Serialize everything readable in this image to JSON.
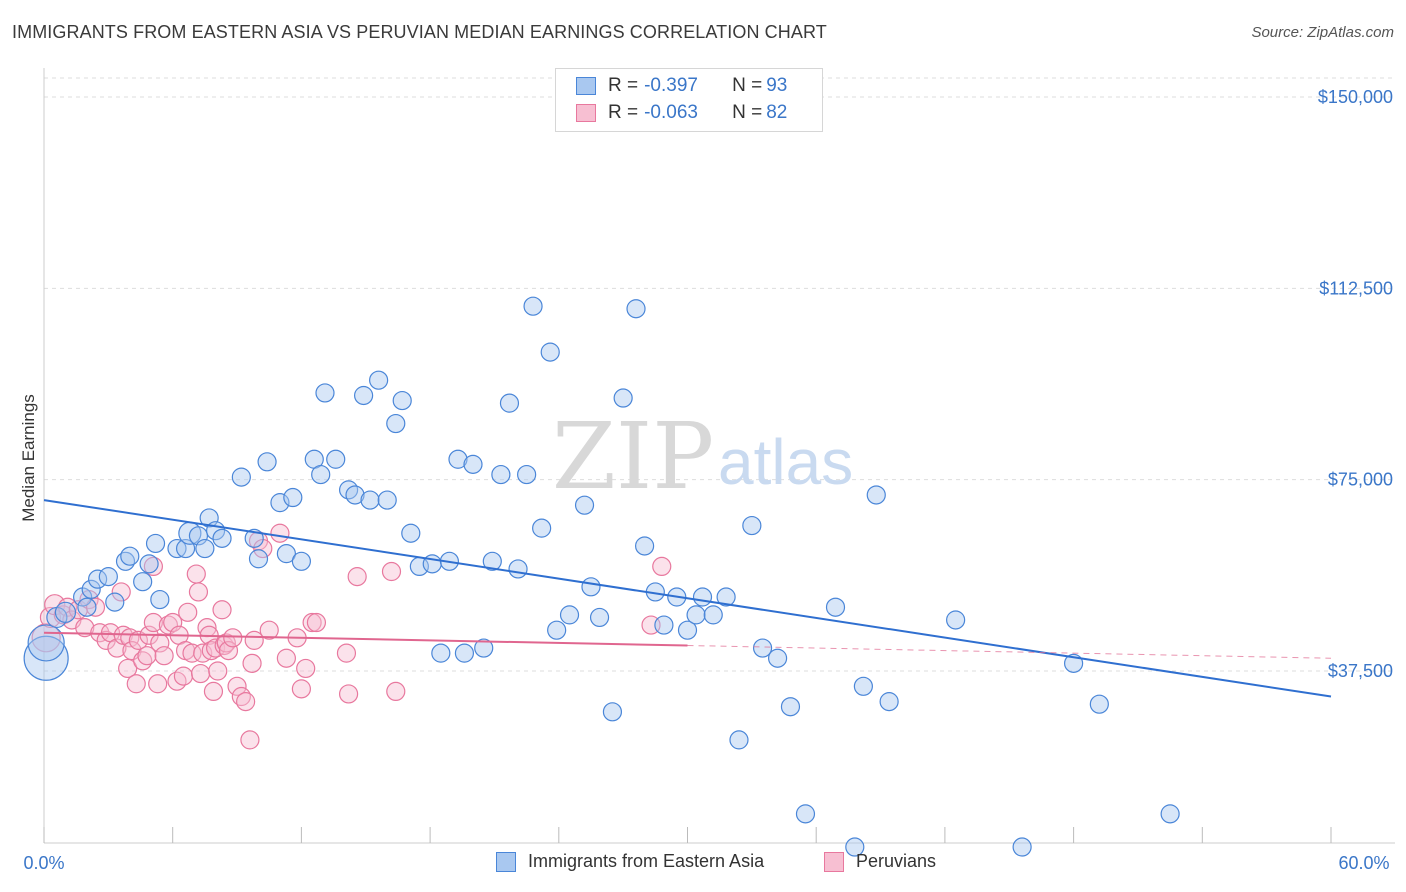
{
  "title": "IMMIGRANTS FROM EASTERN ASIA VS PERUVIAN MEDIAN EARNINGS CORRELATION CHART",
  "source": "Source: ZipAtlas.com",
  "watermark": {
    "zip": "ZIP",
    "atlas": "atlas"
  },
  "legend": {
    "rows": [
      {
        "r_label": "R = ",
        "r_value": "-0.397",
        "n_label": "N = ",
        "n_value": "93"
      },
      {
        "r_label": "R = ",
        "r_value": "-0.063",
        "n_label": "N = ",
        "n_value": "82"
      }
    ]
  },
  "colors": {
    "blue_fill": "#a9c8f0",
    "blue_stroke": "#4a86d8",
    "blue_line": "#2f6fd0",
    "pink_fill": "#f7bfd2",
    "pink_stroke": "#e8789e",
    "pink_line": "#e0668f",
    "grid": "#dddddd",
    "label": "#3a76c8"
  },
  "chart_data": {
    "type": "scatter",
    "title": "IMMIGRANTS FROM EASTERN ASIA VS PERUVIAN MEDIAN EARNINGS CORRELATION CHART",
    "xlabel": "",
    "ylabel": "Median Earnings",
    "xlim": [
      0,
      60
    ],
    "ylim": [
      10000,
      155000
    ],
    "x_tick_labels": [
      "0.0%",
      "60.0%"
    ],
    "y_ticks": [
      {
        "value": 37500,
        "label": "$37,500"
      },
      {
        "value": 75000,
        "label": "$75,000"
      },
      {
        "value": 112500,
        "label": "$112,500"
      },
      {
        "value": 150000,
        "label": "$150,000"
      }
    ],
    "series": [
      {
        "name": "Immigrants from Eastern Asia",
        "color": "#4a86d8",
        "trend": {
          "x0": 0,
          "y0": 71000,
          "x1": 60,
          "y1": 32500
        },
        "points": [
          [
            0.1,
            40000,
            22
          ],
          [
            0.1,
            43000,
            18
          ],
          [
            0.6,
            48000,
            10
          ],
          [
            1.0,
            49000,
            10
          ],
          [
            1.8,
            52000,
            9
          ],
          [
            2.0,
            50000,
            9
          ],
          [
            2.2,
            53500,
            9
          ],
          [
            2.5,
            55500,
            9
          ],
          [
            3.0,
            56000,
            9
          ],
          [
            3.3,
            51000,
            9
          ],
          [
            3.8,
            59000,
            9
          ],
          [
            4.0,
            60000,
            9
          ],
          [
            4.6,
            55000,
            9
          ],
          [
            4.9,
            58500,
            9
          ],
          [
            5.2,
            62500,
            9
          ],
          [
            5.4,
            51500,
            9
          ],
          [
            6.2,
            61500,
            9
          ],
          [
            6.6,
            61500,
            9
          ],
          [
            6.8,
            64500,
            11
          ],
          [
            7.2,
            64000,
            9
          ],
          [
            7.5,
            61500,
            9
          ],
          [
            7.7,
            67500,
            9
          ],
          [
            8.0,
            65000,
            9
          ],
          [
            8.3,
            63500,
            9
          ],
          [
            9.2,
            75500,
            9
          ],
          [
            9.8,
            63500,
            9
          ],
          [
            10.0,
            59500,
            9
          ],
          [
            10.4,
            78500,
            9
          ],
          [
            11.0,
            70500,
            9
          ],
          [
            11.3,
            60500,
            9
          ],
          [
            11.6,
            71500,
            9
          ],
          [
            12.0,
            59000,
            9
          ],
          [
            12.6,
            79000,
            9
          ],
          [
            12.9,
            76000,
            9
          ],
          [
            13.1,
            92000,
            9
          ],
          [
            13.6,
            79000,
            9
          ],
          [
            14.2,
            73000,
            9
          ],
          [
            14.5,
            72000,
            9
          ],
          [
            14.9,
            91500,
            9
          ],
          [
            15.2,
            71000,
            9
          ],
          [
            15.6,
            94500,
            9
          ],
          [
            16.0,
            71000,
            9
          ],
          [
            16.4,
            86000,
            9
          ],
          [
            16.7,
            90500,
            9
          ],
          [
            17.1,
            64500,
            9
          ],
          [
            17.5,
            58000,
            9
          ],
          [
            18.1,
            58500,
            9
          ],
          [
            18.5,
            41000,
            9
          ],
          [
            18.9,
            59000,
            9
          ],
          [
            19.3,
            79000,
            9
          ],
          [
            19.6,
            41000,
            9
          ],
          [
            20.0,
            78000,
            9
          ],
          [
            20.5,
            42000,
            9
          ],
          [
            20.9,
            59000,
            9
          ],
          [
            21.3,
            76000,
            9
          ],
          [
            21.7,
            90000,
            9
          ],
          [
            22.1,
            57500,
            9
          ],
          [
            22.5,
            76000,
            9
          ],
          [
            23.2,
            65500,
            9
          ],
          [
            23.6,
            100000,
            9
          ],
          [
            23.9,
            45500,
            9
          ],
          [
            24.5,
            48500,
            9
          ],
          [
            22.8,
            109000,
            9
          ],
          [
            25.2,
            70000,
            9
          ],
          [
            25.5,
            54000,
            9
          ],
          [
            25.9,
            48000,
            9
          ],
          [
            26.5,
            29500,
            9
          ],
          [
            27.0,
            91000,
            9
          ],
          [
            27.6,
            108500,
            9
          ],
          [
            28.0,
            62000,
            9
          ],
          [
            28.5,
            53000,
            9
          ],
          [
            28.9,
            46500,
            9
          ],
          [
            29.5,
            52000,
            9
          ],
          [
            30.0,
            45500,
            9
          ],
          [
            30.4,
            48500,
            9
          ],
          [
            30.7,
            52000,
            9
          ],
          [
            31.2,
            48500,
            9
          ],
          [
            31.8,
            52000,
            9
          ],
          [
            32.4,
            24000,
            9
          ],
          [
            33.0,
            66000,
            9
          ],
          [
            33.5,
            42000,
            9
          ],
          [
            34.2,
            40000,
            9
          ],
          [
            34.8,
            30500,
            9
          ],
          [
            35.5,
            9500,
            9
          ],
          [
            36.9,
            50000,
            9
          ],
          [
            37.8,
            3000,
            9
          ],
          [
            38.2,
            34500,
            9
          ],
          [
            39.4,
            31500,
            9
          ],
          [
            38.8,
            72000,
            9
          ],
          [
            42.5,
            47500,
            9
          ],
          [
            45.6,
            3000,
            9
          ],
          [
            48.0,
            39000,
            9
          ],
          [
            49.2,
            31000,
            9
          ],
          [
            52.5,
            9500,
            9
          ]
        ]
      },
      {
        "name": "Peruvians",
        "color": "#e8789e",
        "trend": {
          "x0": 0,
          "y0": 45000,
          "x1": 30,
          "y1": 42500
        },
        "trend_dashed": {
          "x0": 30,
          "y0": 42500,
          "x1": 60,
          "y1": 40000
        },
        "points": [
          [
            0.1,
            44000,
            14
          ],
          [
            0.3,
            48000,
            10
          ],
          [
            0.5,
            50500,
            10
          ],
          [
            0.9,
            48500,
            9
          ],
          [
            1.1,
            50000,
            9
          ],
          [
            1.3,
            47500,
            9
          ],
          [
            1.6,
            49500,
            9
          ],
          [
            1.9,
            46000,
            9
          ],
          [
            2.1,
            51500,
            9
          ],
          [
            2.4,
            50000,
            9
          ],
          [
            2.6,
            45000,
            9
          ],
          [
            2.9,
            43500,
            9
          ],
          [
            3.1,
            45000,
            9
          ],
          [
            3.4,
            42000,
            9
          ],
          [
            3.6,
            53000,
            9
          ],
          [
            3.7,
            44500,
            9
          ],
          [
            3.9,
            38000,
            9
          ],
          [
            4.0,
            44000,
            9
          ],
          [
            4.1,
            41500,
            9
          ],
          [
            4.3,
            35000,
            9
          ],
          [
            4.4,
            43500,
            9
          ],
          [
            4.6,
            39500,
            9
          ],
          [
            4.8,
            40500,
            9
          ],
          [
            4.9,
            44500,
            9
          ],
          [
            5.1,
            58000,
            9
          ],
          [
            5.1,
            47000,
            9
          ],
          [
            5.3,
            35000,
            9
          ],
          [
            5.4,
            43000,
            9
          ],
          [
            5.6,
            40500,
            9
          ],
          [
            5.8,
            46500,
            9
          ],
          [
            6.0,
            47000,
            9
          ],
          [
            6.2,
            35500,
            9
          ],
          [
            6.3,
            44500,
            9
          ],
          [
            6.5,
            36500,
            9
          ],
          [
            6.6,
            41500,
            9
          ],
          [
            6.7,
            49000,
            9
          ],
          [
            6.9,
            41000,
            9
          ],
          [
            7.1,
            56500,
            9
          ],
          [
            7.2,
            53000,
            9
          ],
          [
            7.3,
            37000,
            9
          ],
          [
            7.4,
            41000,
            9
          ],
          [
            7.6,
            46000,
            9
          ],
          [
            7.7,
            44500,
            9
          ],
          [
            7.8,
            41500,
            9
          ],
          [
            7.9,
            33500,
            9
          ],
          [
            8.0,
            42000,
            9
          ],
          [
            8.1,
            37500,
            9
          ],
          [
            8.3,
            49500,
            9
          ],
          [
            8.4,
            42500,
            9
          ],
          [
            8.5,
            43000,
            9
          ],
          [
            8.6,
            41500,
            9
          ],
          [
            8.8,
            44000,
            9
          ],
          [
            9.0,
            34500,
            9
          ],
          [
            9.2,
            32500,
            9
          ],
          [
            9.4,
            31500,
            9
          ],
          [
            9.6,
            24000,
            9
          ],
          [
            9.7,
            39000,
            9
          ],
          [
            9.8,
            43500,
            9
          ],
          [
            10.0,
            63000,
            9
          ],
          [
            10.2,
            61500,
            9
          ],
          [
            10.5,
            45500,
            9
          ],
          [
            11.0,
            64500,
            9
          ],
          [
            11.3,
            40000,
            9
          ],
          [
            11.8,
            44000,
            9
          ],
          [
            12.0,
            34000,
            9
          ],
          [
            12.2,
            38000,
            9
          ],
          [
            12.5,
            47000,
            9
          ],
          [
            12.7,
            47000,
            9
          ],
          [
            14.1,
            41000,
            9
          ],
          [
            14.2,
            33000,
            9
          ],
          [
            14.6,
            56000,
            9
          ],
          [
            16.2,
            57000,
            9
          ],
          [
            16.4,
            33500,
            9
          ],
          [
            28.3,
            46500,
            9
          ],
          [
            28.8,
            58000,
            9
          ]
        ]
      }
    ]
  },
  "bottom_legend": {
    "items": [
      {
        "label": "Immigrants from Eastern Asia"
      },
      {
        "label": "Peruvians"
      }
    ]
  }
}
